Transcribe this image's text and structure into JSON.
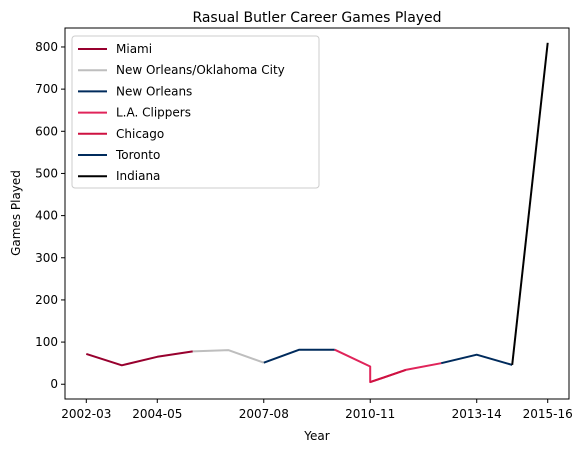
{
  "chart_data": {
    "type": "line",
    "title": "Rasual Butler Career Games Played",
    "xlabel": "Year",
    "ylabel": "Games Played",
    "x": [
      "2002-03",
      "2003-04",
      "2004-05",
      "2005-06",
      "2006-07",
      "2007-08",
      "2008-09",
      "2009-10",
      "2010-11",
      "2011-12",
      "2012-13",
      "2013-14",
      "2014-15",
      "2015-16"
    ],
    "x_tick_labels": [
      "2002-03",
      "2004-05",
      "2007-08",
      "2010-11",
      "2013-14",
      "2015-16"
    ],
    "ylim": [
      -35,
      845
    ],
    "y_ticks": [
      0,
      100,
      200,
      300,
      400,
      500,
      600,
      700,
      800
    ],
    "grid": false,
    "legend_position": "top-left",
    "series": [
      {
        "name": "Miami",
        "color": "#98002e",
        "points": [
          [
            0,
            72
          ],
          [
            1,
            45
          ],
          [
            2,
            65
          ],
          [
            3,
            78
          ]
        ]
      },
      {
        "name": "New Orleans/Oklahoma City",
        "color": "#bebebe",
        "points": [
          [
            3,
            78
          ],
          [
            4,
            81
          ],
          [
            5,
            51
          ]
        ]
      },
      {
        "name": "New Orleans",
        "color": "#002b5c",
        "points": [
          [
            5,
            51
          ],
          [
            6,
            82
          ],
          [
            7,
            82
          ]
        ]
      },
      {
        "name": "L.A. Clippers",
        "color": "#e0245a",
        "points": [
          [
            7,
            82
          ],
          [
            8,
            42
          ],
          [
            8,
            5
          ],
          [
            9,
            34
          ],
          [
            10,
            50
          ]
        ]
      },
      {
        "name": "Chicago",
        "color": "#ce1141",
        "points": [
          [
            8,
            5
          ],
          [
            9,
            34
          ]
        ]
      },
      {
        "name": "Toronto",
        "color": "#002b5c",
        "points": [
          [
            10,
            50
          ],
          [
            11,
            70
          ],
          [
            12,
            46
          ]
        ]
      },
      {
        "name": "Indiana",
        "color": "#000000",
        "points": [
          [
            12,
            46
          ],
          [
            13,
            810
          ]
        ]
      }
    ]
  }
}
